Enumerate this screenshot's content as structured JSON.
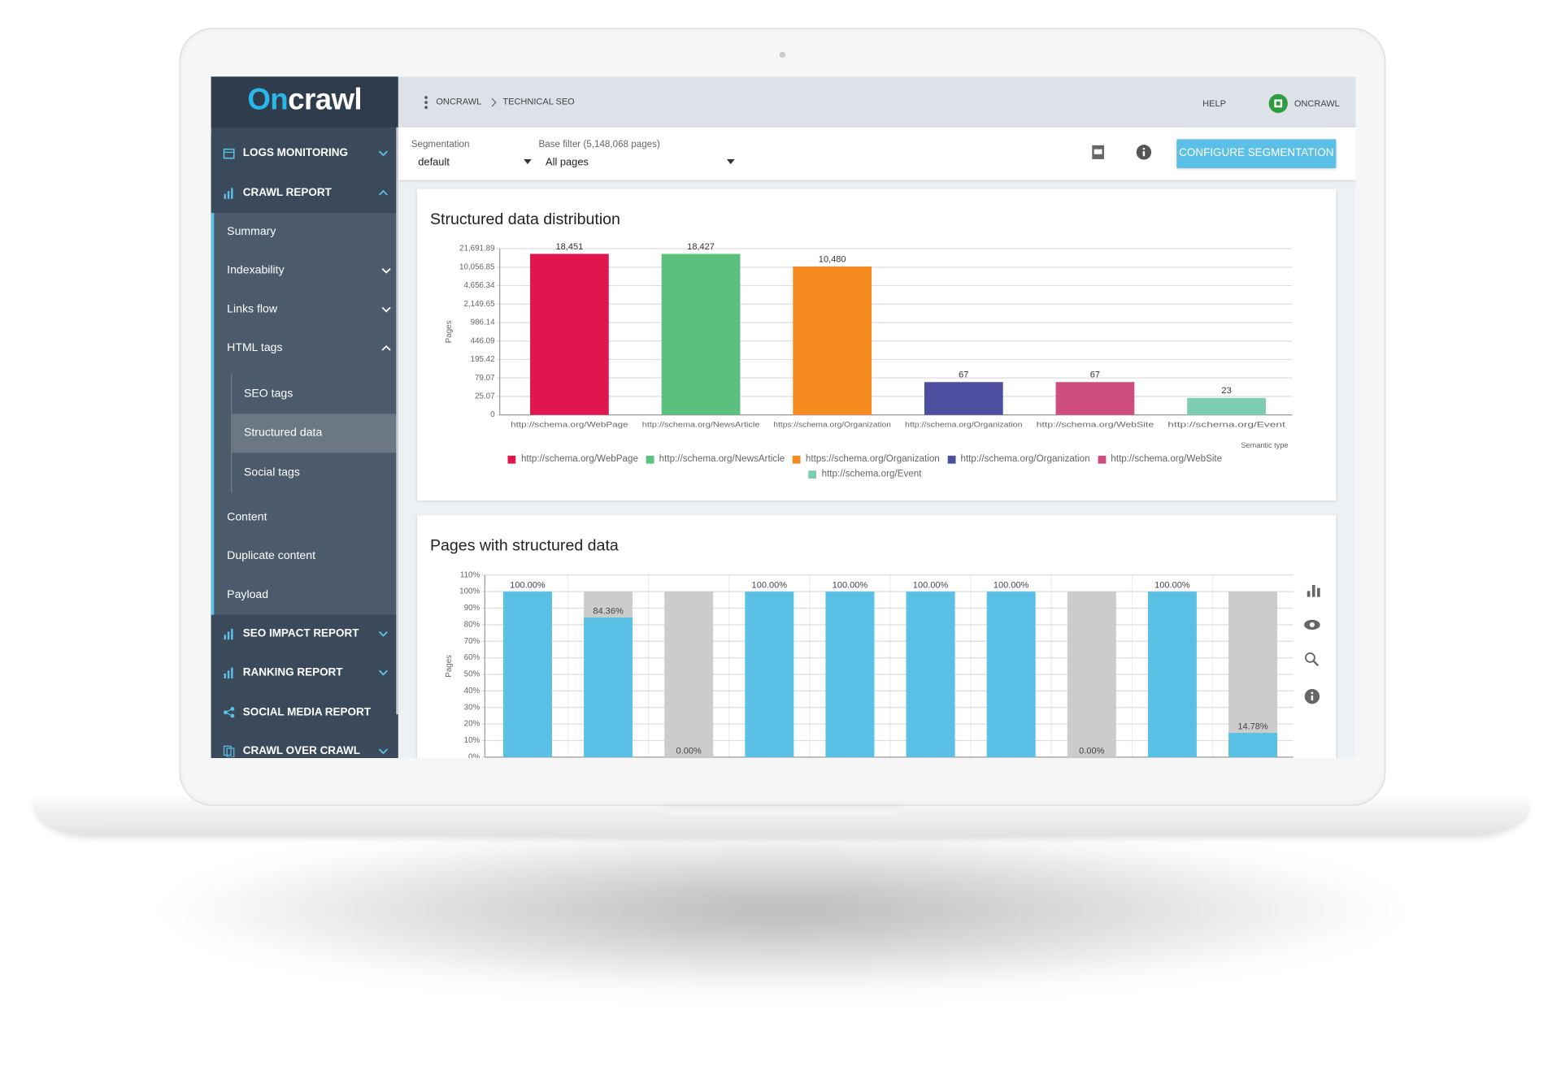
{
  "header": {
    "logo": {
      "prefix": "On",
      "rest": "crawl"
    },
    "breadcrumb": [
      "ONCRAWL",
      "TECHNICAL SEO"
    ],
    "help": "HELP",
    "user": "ONCRAWL"
  },
  "sidebar": {
    "sections": [
      {
        "label": "LOGS MONITORING"
      },
      {
        "label": "CRAWL REPORT",
        "items": [
          {
            "label": "Summary"
          },
          {
            "label": "Indexability"
          },
          {
            "label": "Links flow"
          },
          {
            "label": "HTML tags",
            "items": [
              {
                "label": "SEO tags"
              },
              {
                "label": "Structured data"
              },
              {
                "label": "Social tags"
              }
            ]
          },
          {
            "label": "Content"
          },
          {
            "label": "Duplicate content"
          },
          {
            "label": "Payload"
          }
        ]
      },
      {
        "label": "SEO IMPACT REPORT"
      },
      {
        "label": "RANKING REPORT"
      },
      {
        "label": "SOCIAL MEDIA REPORT"
      },
      {
        "label": "CRAWL OVER CRAWL"
      }
    ]
  },
  "filters": {
    "segmentation_label": "Segmentation",
    "segmentation_value": "default",
    "base_filter_label": "Base filter (5,148,068 pages)",
    "base_filter_value": "All pages",
    "button": "CONFIGURE SEGMENTATION"
  },
  "chart_data": [
    {
      "type": "bar",
      "title": "Structured data distribution",
      "y_label": "Pages",
      "x_label": "Semantic type",
      "yscale": "symlog",
      "categories": [
        "http://schema.org/WebPage",
        "http://schema.org/NewsArticle",
        "https://schema.org/Organization",
        "http://schema.org/Organization",
        "http://schema.org/WebSite",
        "http://schema.org/Event"
      ],
      "values": [
        18451,
        18427,
        10480,
        67,
        67,
        23
      ],
      "value_labels": [
        "18,451",
        "18,427",
        "10,480",
        "67",
        "67",
        "23"
      ],
      "colors": [
        "#e0174f",
        "#5bbf7d",
        "#f58b1f",
        "#4e4ea0",
        "#cf4d7d",
        "#7ccbb3"
      ],
      "ylim": [
        0,
        21691.89
      ],
      "yticks": [
        0,
        25.07,
        79.07,
        195.42,
        446.09,
        986.14,
        {
          "value": 2149.65,
          "label": "2,149.65"
        },
        {
          "value": 4656.34,
          "label": "4,656.34"
        },
        {
          "value": 10056.85,
          "label": "10,056.85"
        },
        {
          "value": 21691.89,
          "label": "21,691.89"
        }
      ],
      "grid": true,
      "legend": "bottom"
    },
    {
      "type": "stacked-bar",
      "title": "Pages with structured data",
      "y_label": "Pages",
      "categories": [
        null,
        null,
        null,
        null,
        null,
        null,
        null,
        null,
        null,
        null
      ],
      "series": [
        {
          "color": "#5bc0e6",
          "values": [
            100,
            84.36,
            0,
            100,
            100,
            100,
            100,
            0,
            100,
            14.78
          ],
          "value_labels": [
            "100.00%",
            "84.36%",
            "0.00%",
            "100.00%",
            "100.00%",
            "100.00%",
            "100.00%",
            "0.00%",
            "100.00%",
            "14.78%"
          ]
        },
        {
          "color": "#cccccc",
          "values": [
            0,
            15.64,
            100,
            0,
            0,
            0,
            0,
            100,
            0,
            85.22
          ]
        }
      ],
      "ylim": [
        0,
        110
      ],
      "yticks": [
        {
          "value": 0,
          "label": "0%"
        },
        {
          "value": 10,
          "label": "10%"
        },
        {
          "value": 20,
          "label": "20%"
        },
        {
          "value": 30,
          "label": "30%"
        },
        {
          "value": 40,
          "label": "40%"
        },
        {
          "value": 50,
          "label": "50%"
        },
        {
          "value": 60,
          "label": "60%"
        },
        {
          "value": 70,
          "label": "70%"
        },
        {
          "value": 80,
          "label": "80%"
        },
        {
          "value": 90,
          "label": "90%"
        },
        {
          "value": 100,
          "label": "100%"
        },
        {
          "value": 110,
          "label": "110%"
        }
      ],
      "grid": true
    }
  ]
}
